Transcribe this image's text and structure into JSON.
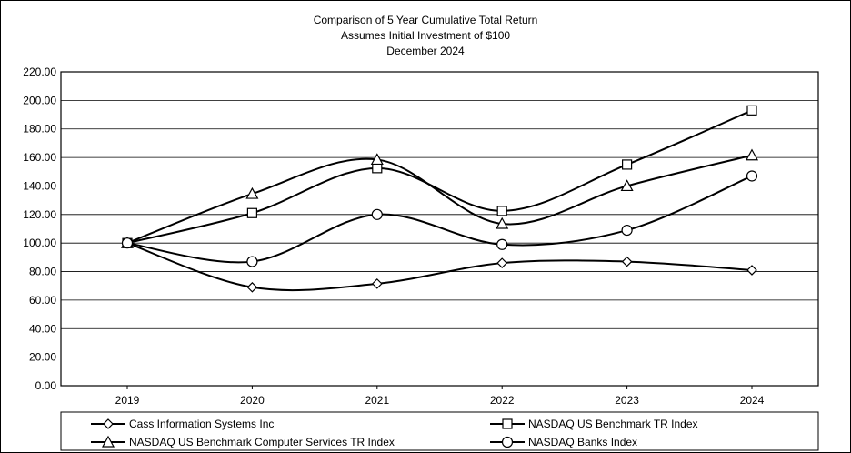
{
  "chart_data": {
    "type": "line",
    "title_lines": [
      "Comparison of 5 Year Cumulative Total Return",
      "Assumes Initial Investment of $100",
      "December 2024"
    ],
    "xlabel": "",
    "ylabel": "",
    "categories": [
      "2019",
      "2020",
      "2021",
      "2022",
      "2023",
      "2024"
    ],
    "ylim": [
      0,
      220
    ],
    "ytick_step": 20,
    "ytick_labels": [
      "0.00",
      "20.00",
      "40.00",
      "60.00",
      "80.00",
      "100.00",
      "120.00",
      "140.00",
      "160.00",
      "180.00",
      "200.00",
      "220.00"
    ],
    "grid": "horizontal",
    "smooth": true,
    "legend_position": "bottom",
    "series": [
      {
        "name": "Cass Information Systems Inc",
        "marker": "diamond",
        "values": [
          100,
          69,
          71.5,
          86,
          87,
          81
        ]
      },
      {
        "name": "NASDAQ US Benchmark TR Index",
        "marker": "square",
        "values": [
          100,
          121,
          152.5,
          122.5,
          155,
          193
        ]
      },
      {
        "name": "NASDAQ US Benchmark Computer Services TR Index",
        "marker": "triangle",
        "values": [
          100,
          134.5,
          158.5,
          113.5,
          140,
          161.5
        ]
      },
      {
        "name": "NASDAQ Banks Index",
        "marker": "circle",
        "values": [
          100,
          87,
          120,
          99,
          109,
          147
        ]
      }
    ]
  }
}
